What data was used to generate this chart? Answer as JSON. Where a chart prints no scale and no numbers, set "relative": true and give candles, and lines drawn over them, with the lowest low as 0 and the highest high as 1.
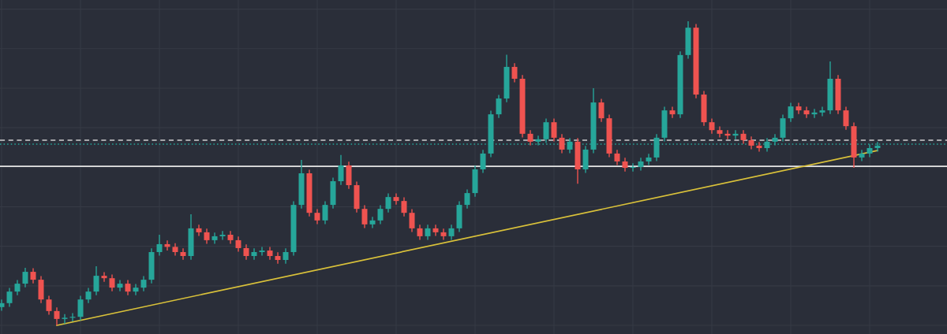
{
  "chart_data": {
    "type": "candlestick",
    "relative": true,
    "grid": true,
    "categories": [
      null,
      null,
      null,
      null,
      null,
      null,
      null,
      null,
      null,
      null,
      null,
      null,
      null,
      null,
      null,
      null,
      null,
      null,
      null,
      null,
      null,
      null,
      null,
      null,
      null,
      null,
      null,
      null,
      null,
      null,
      null,
      null,
      null,
      null,
      null,
      null,
      null,
      null,
      null,
      null,
      null,
      null,
      null,
      null,
      null,
      null,
      null,
      null,
      null,
      null,
      null,
      null,
      null,
      null,
      null,
      null,
      null,
      null,
      null,
      null,
      null,
      null,
      null,
      null,
      null,
      null,
      null,
      null,
      null,
      null,
      null,
      null,
      null,
      null,
      null,
      null,
      null,
      null,
      null,
      null,
      null,
      null,
      null,
      null,
      null,
      null,
      null,
      null,
      null,
      null,
      null,
      null,
      null,
      null,
      null,
      null,
      null,
      null,
      null,
      null,
      null,
      null,
      null,
      null,
      null,
      null,
      null,
      null,
      null,
      null,
      null,
      null
    ],
    "ohlc": [
      [
        0.06,
        0.085,
        0.048,
        0.073
      ],
      [
        0.073,
        0.123,
        0.061,
        0.111
      ],
      [
        0.111,
        0.149,
        0.099,
        0.137
      ],
      [
        0.137,
        0.189,
        0.125,
        0.176
      ],
      [
        0.176,
        0.188,
        0.138,
        0.15
      ],
      [
        0.15,
        0.162,
        0.073,
        0.085
      ],
      [
        0.085,
        0.097,
        0.035,
        0.047
      ],
      [
        0.047,
        0.059,
        0.0,
        0.021
      ],
      [
        0.021,
        0.037,
        0.005,
        0.025
      ],
      [
        0.025,
        0.04,
        0.013,
        0.028
      ],
      [
        0.028,
        0.097,
        0.016,
        0.085
      ],
      [
        0.085,
        0.123,
        0.073,
        0.111
      ],
      [
        0.111,
        0.194,
        0.099,
        0.163
      ],
      [
        0.163,
        0.175,
        0.143,
        0.155
      ],
      [
        0.155,
        0.167,
        0.112,
        0.124
      ],
      [
        0.124,
        0.149,
        0.112,
        0.137
      ],
      [
        0.137,
        0.149,
        0.099,
        0.111
      ],
      [
        0.111,
        0.136,
        0.099,
        0.124
      ],
      [
        0.124,
        0.162,
        0.112,
        0.15
      ],
      [
        0.15,
        0.253,
        0.138,
        0.241
      ],
      [
        0.241,
        0.298,
        0.229,
        0.267
      ],
      [
        0.267,
        0.279,
        0.246,
        0.258
      ],
      [
        0.258,
        0.27,
        0.229,
        0.241
      ],
      [
        0.241,
        0.253,
        0.216,
        0.228
      ],
      [
        0.228,
        0.365,
        0.216,
        0.319
      ],
      [
        0.319,
        0.331,
        0.294,
        0.306
      ],
      [
        0.306,
        0.318,
        0.268,
        0.28
      ],
      [
        0.28,
        0.305,
        0.268,
        0.293
      ],
      [
        0.293,
        0.31,
        0.281,
        0.298
      ],
      [
        0.298,
        0.31,
        0.268,
        0.28
      ],
      [
        0.28,
        0.292,
        0.242,
        0.254
      ],
      [
        0.254,
        0.266,
        0.216,
        0.228
      ],
      [
        0.228,
        0.253,
        0.216,
        0.241
      ],
      [
        0.241,
        0.258,
        0.229,
        0.246
      ],
      [
        0.246,
        0.258,
        0.216,
        0.228
      ],
      [
        0.228,
        0.24,
        0.203,
        0.215
      ],
      [
        0.215,
        0.253,
        0.203,
        0.241
      ],
      [
        0.241,
        0.408,
        0.229,
        0.396
      ],
      [
        0.396,
        0.544,
        0.384,
        0.5
      ],
      [
        0.5,
        0.512,
        0.358,
        0.37
      ],
      [
        0.37,
        0.382,
        0.333,
        0.345
      ],
      [
        0.345,
        0.408,
        0.333,
        0.396
      ],
      [
        0.396,
        0.486,
        0.384,
        0.474
      ],
      [
        0.474,
        0.56,
        0.462,
        0.526
      ],
      [
        0.526,
        0.538,
        0.449,
        0.461
      ],
      [
        0.461,
        0.473,
        0.371,
        0.383
      ],
      [
        0.383,
        0.395,
        0.32,
        0.332
      ],
      [
        0.332,
        0.357,
        0.32,
        0.345
      ],
      [
        0.345,
        0.395,
        0.333,
        0.383
      ],
      [
        0.383,
        0.434,
        0.371,
        0.422
      ],
      [
        0.422,
        0.434,
        0.397,
        0.409
      ],
      [
        0.409,
        0.421,
        0.358,
        0.37
      ],
      [
        0.37,
        0.382,
        0.307,
        0.319
      ],
      [
        0.319,
        0.331,
        0.281,
        0.293
      ],
      [
        0.293,
        0.331,
        0.281,
        0.319
      ],
      [
        0.319,
        0.331,
        0.294,
        0.306
      ],
      [
        0.306,
        0.318,
        0.281,
        0.293
      ],
      [
        0.293,
        0.331,
        0.281,
        0.319
      ],
      [
        0.319,
        0.408,
        0.307,
        0.396
      ],
      [
        0.396,
        0.447,
        0.384,
        0.435
      ],
      [
        0.435,
        0.525,
        0.423,
        0.513
      ],
      [
        0.513,
        0.577,
        0.501,
        0.565
      ],
      [
        0.565,
        0.706,
        0.553,
        0.694
      ],
      [
        0.694,
        0.758,
        0.682,
        0.746
      ],
      [
        0.746,
        0.89,
        0.734,
        0.85
      ],
      [
        0.85,
        0.862,
        0.799,
        0.811
      ],
      [
        0.811,
        0.823,
        0.618,
        0.63
      ],
      [
        0.63,
        0.642,
        0.592,
        0.604
      ],
      [
        0.604,
        0.624,
        0.592,
        0.612
      ],
      [
        0.612,
        0.68,
        0.6,
        0.668
      ],
      [
        0.668,
        0.68,
        0.605,
        0.617
      ],
      [
        0.617,
        0.629,
        0.566,
        0.578
      ],
      [
        0.578,
        0.616,
        0.566,
        0.604
      ],
      [
        0.604,
        0.616,
        0.466,
        0.513
      ],
      [
        0.513,
        0.59,
        0.501,
        0.578
      ],
      [
        0.578,
        0.78,
        0.566,
        0.733
      ],
      [
        0.733,
        0.745,
        0.669,
        0.681
      ],
      [
        0.681,
        0.693,
        0.553,
        0.565
      ],
      [
        0.565,
        0.577,
        0.527,
        0.539
      ],
      [
        0.539,
        0.551,
        0.506,
        0.518
      ],
      [
        0.518,
        0.533,
        0.506,
        0.521
      ],
      [
        0.521,
        0.551,
        0.509,
        0.539
      ],
      [
        0.539,
        0.564,
        0.527,
        0.552
      ],
      [
        0.552,
        0.629,
        0.54,
        0.617
      ],
      [
        0.617,
        0.719,
        0.605,
        0.707
      ],
      [
        0.707,
        0.719,
        0.682,
        0.694
      ],
      [
        0.694,
        0.901,
        0.682,
        0.889
      ],
      [
        0.889,
        1.0,
        0.877,
        0.979
      ],
      [
        0.979,
        0.991,
        0.747,
        0.759
      ],
      [
        0.759,
        0.771,
        0.656,
        0.668
      ],
      [
        0.668,
        0.68,
        0.63,
        0.642
      ],
      [
        0.642,
        0.654,
        0.618,
        0.63
      ],
      [
        0.63,
        0.642,
        0.612,
        0.624
      ],
      [
        0.624,
        0.642,
        0.612,
        0.63
      ],
      [
        0.63,
        0.642,
        0.597,
        0.609
      ],
      [
        0.609,
        0.621,
        0.579,
        0.591
      ],
      [
        0.591,
        0.603,
        0.571,
        0.583
      ],
      [
        0.583,
        0.616,
        0.571,
        0.604
      ],
      [
        0.604,
        0.629,
        0.592,
        0.617
      ],
      [
        0.617,
        0.693,
        0.605,
        0.681
      ],
      [
        0.681,
        0.732,
        0.669,
        0.72
      ],
      [
        0.72,
        0.732,
        0.695,
        0.707
      ],
      [
        0.707,
        0.719,
        0.682,
        0.694
      ],
      [
        0.694,
        0.712,
        0.682,
        0.7
      ],
      [
        0.7,
        0.719,
        0.688,
        0.707
      ],
      [
        0.707,
        0.868,
        0.695,
        0.811
      ],
      [
        0.811,
        0.823,
        0.695,
        0.707
      ],
      [
        0.707,
        0.719,
        0.643,
        0.655
      ],
      [
        0.655,
        0.667,
        0.518,
        0.552
      ],
      [
        0.552,
        0.577,
        0.54,
        0.565
      ],
      [
        0.565,
        0.595,
        0.553,
        0.583
      ],
      [
        0.583,
        0.603,
        0.571,
        0.591
      ]
    ],
    "colors": [
      "#26a69a",
      "#26a69a",
      "#26a69a",
      "#26a69a",
      "#ef5350",
      "#ef5350",
      "#ef5350",
      "#ef5350",
      "#26a69a",
      "#26a69a",
      "#26a69a",
      "#26a69a",
      "#26a69a",
      "#ef5350",
      "#ef5350",
      "#26a69a",
      "#ef5350",
      "#26a69a",
      "#26a69a",
      "#26a69a",
      "#26a69a",
      "#ef5350",
      "#ef5350",
      "#ef5350",
      "#26a69a",
      "#ef5350",
      "#ef5350",
      "#26a69a",
      "#26a69a",
      "#ef5350",
      "#ef5350",
      "#ef5350",
      "#26a69a",
      "#26a69a",
      "#ef5350",
      "#ef5350",
      "#26a69a",
      "#26a69a",
      "#26a69a",
      "#ef5350",
      "#ef5350",
      "#26a69a",
      "#26a69a",
      "#26a69a",
      "#ef5350",
      "#ef5350",
      "#ef5350",
      "#26a69a",
      "#26a69a",
      "#26a69a",
      "#ef5350",
      "#ef5350",
      "#ef5350",
      "#ef5350",
      "#26a69a",
      "#ef5350",
      "#ef5350",
      "#26a69a",
      "#26a69a",
      "#26a69a",
      "#26a69a",
      "#26a69a",
      "#26a69a",
      "#26a69a",
      "#26a69a",
      "#ef5350",
      "#ef5350",
      "#ef5350",
      "#26a69a",
      "#26a69a",
      "#ef5350",
      "#ef5350",
      "#26a69a",
      "#ef5350",
      "#26a69a",
      "#26a69a",
      "#ef5350",
      "#ef5350",
      "#ef5350",
      "#ef5350",
      "#26a69a",
      "#26a69a",
      "#26a69a",
      "#26a69a",
      "#26a69a",
      "#ef5350",
      "#26a69a",
      "#26a69a",
      "#ef5350",
      "#ef5350",
      "#ef5350",
      "#ef5350",
      "#ef5350",
      "#26a69a",
      "#ef5350",
      "#ef5350",
      "#ef5350",
      "#26a69a",
      "#26a69a",
      "#26a69a",
      "#26a69a",
      "#ef5350",
      "#ef5350",
      "#26a69a",
      "#26a69a",
      "#26a69a",
      "#ef5350",
      "#ef5350",
      "#ef5350",
      "#26a69a",
      "#26a69a",
      "#26a69a"
    ],
    "series": [
      {
        "type": "line",
        "color": "#d9c13a",
        "values": [
          null,
          null,
          null,
          null,
          null,
          null,
          null,
          0.0,
          null,
          null,
          null,
          null,
          null,
          null,
          null,
          null,
          null,
          null,
          null,
          null,
          null,
          null,
          null,
          null,
          null,
          null,
          null,
          null,
          null,
          null,
          null,
          null,
          null,
          null,
          null,
          null,
          null,
          null,
          null,
          null,
          null,
          null,
          null,
          null,
          null,
          null,
          null,
          null,
          null,
          null,
          null,
          null,
          null,
          null,
          null,
          null,
          null,
          null,
          null,
          null,
          null,
          null,
          null,
          null,
          null,
          null,
          null,
          null,
          null,
          null,
          null,
          null,
          null,
          null,
          null,
          null,
          null,
          null,
          null,
          null,
          null,
          null,
          null,
          null,
          null,
          null,
          null,
          null,
          null,
          null,
          null,
          null,
          null,
          null,
          null,
          null,
          null,
          null,
          null,
          null,
          null,
          null,
          null,
          null,
          null,
          null,
          null,
          null,
          null,
          null,
          null,
          0.575
        ]
      }
    ],
    "ref_lines": [
      {
        "axis": "y",
        "value": 0.523,
        "color": "#e6e6e6",
        "line_style": "solid"
      },
      {
        "axis": "y",
        "value": 0.609,
        "color": "#d0d0d0",
        "line_style": "dashed"
      },
      {
        "axis": "y",
        "value": 0.596,
        "color": "#26a69a",
        "line_style": "dotted"
      }
    ]
  }
}
